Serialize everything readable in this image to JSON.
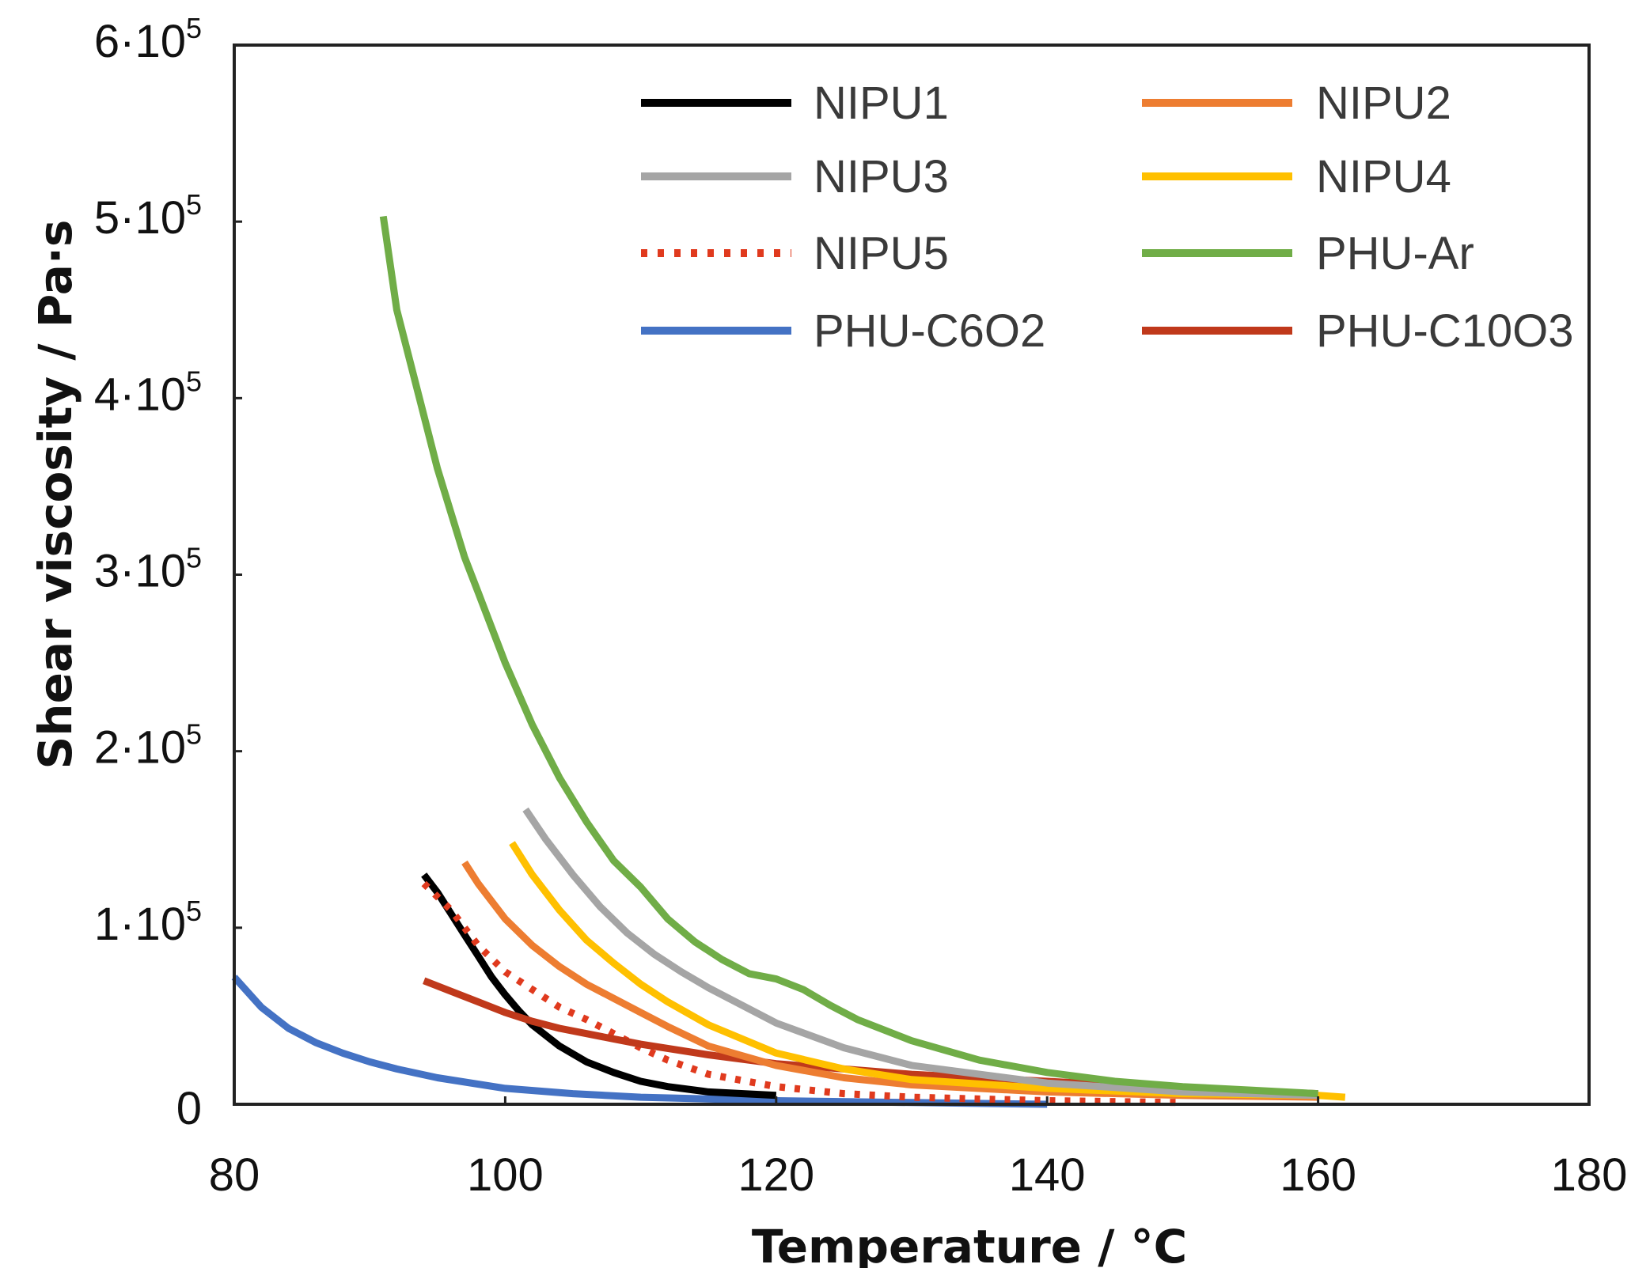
{
  "chart_data": {
    "type": "line",
    "xlabel": "Temperature / °C",
    "ylabel": "Shear viscosity / Pa·s",
    "xlim": [
      80,
      180
    ],
    "ylim": [
      0,
      600000
    ],
    "grid": false,
    "legend_position": "top-right",
    "x_ticks": [
      {
        "value": 80,
        "label": "80"
      },
      {
        "value": 100,
        "label": "100"
      },
      {
        "value": 120,
        "label": "120"
      },
      {
        "value": 140,
        "label": "140"
      },
      {
        "value": 160,
        "label": "160"
      },
      {
        "value": 180,
        "label": "180"
      }
    ],
    "y_ticks": [
      {
        "value": 0,
        "base": "0",
        "exp": ""
      },
      {
        "value": 100000,
        "base": "1·10",
        "exp": "5"
      },
      {
        "value": 200000,
        "base": "2·10",
        "exp": "5"
      },
      {
        "value": 300000,
        "base": "3·10",
        "exp": "5"
      },
      {
        "value": 400000,
        "base": "4·10",
        "exp": "5"
      },
      {
        "value": 500000,
        "base": "5·10",
        "exp": "5"
      },
      {
        "value": 600000,
        "base": "6·10",
        "exp": "5"
      }
    ],
    "series": [
      {
        "name": "PHU-C6O2",
        "color": "#4472C4",
        "style": "solid",
        "x": [
          80,
          82,
          84,
          86,
          88,
          90,
          92,
          95,
          100,
          105,
          110,
          120,
          130,
          140
        ],
        "y": [
          72000,
          55000,
          43000,
          35000,
          29000,
          24000,
          20000,
          15000,
          9000,
          6000,
          4000,
          2000,
          1000,
          0
        ]
      },
      {
        "name": "NIPU1",
        "color": "#000000",
        "style": "solid",
        "x": [
          94,
          95,
          96,
          97,
          98,
          99,
          100,
          101,
          102,
          104,
          106,
          108,
          110,
          112,
          115,
          120
        ],
        "y": [
          130000,
          120000,
          108000,
          96000,
          84000,
          72000,
          62000,
          53000,
          45000,
          33000,
          24000,
          18000,
          13000,
          10000,
          7000,
          5000
        ]
      },
      {
        "name": "NIPU5",
        "color": "#E03A1E",
        "style": "dotted",
        "x": [
          94,
          96,
          98,
          100,
          102,
          104,
          106,
          108,
          110,
          112,
          115,
          120,
          125,
          130,
          140,
          150
        ],
        "y": [
          125000,
          110000,
          90000,
          75000,
          65000,
          55000,
          48000,
          40000,
          32000,
          25000,
          17000,
          10000,
          6000,
          4000,
          2000,
          1000
        ]
      },
      {
        "name": "PHU-C10O3",
        "color": "#C0391B",
        "style": "solid",
        "x": [
          94,
          96,
          98,
          100,
          102,
          104,
          106,
          108,
          110,
          115,
          120,
          125,
          130,
          140,
          150,
          160
        ],
        "y": [
          70000,
          64000,
          58000,
          52000,
          47000,
          43000,
          40000,
          37000,
          34000,
          28000,
          23000,
          20000,
          17000,
          13000,
          9000,
          6000
        ]
      },
      {
        "name": "NIPU2",
        "color": "#ED7D31",
        "style": "solid",
        "x": [
          97,
          98,
          100,
          102,
          104,
          106,
          108,
          110,
          112,
          115,
          120,
          125,
          130,
          140,
          150,
          160
        ],
        "y": [
          137000,
          125000,
          105000,
          90000,
          78000,
          68000,
          60000,
          52000,
          44000,
          33000,
          22000,
          15000,
          11000,
          7000,
          5000,
          4000
        ]
      },
      {
        "name": "NIPU4",
        "color": "#FFC000",
        "style": "solid",
        "x": [
          100.5,
          102,
          104,
          106,
          108,
          110,
          112,
          115,
          120,
          125,
          130,
          140,
          150,
          160,
          162
        ],
        "y": [
          148000,
          130000,
          110000,
          93000,
          80000,
          68000,
          58000,
          45000,
          29000,
          20000,
          14000,
          9000,
          6000,
          5000,
          4000
        ]
      },
      {
        "name": "NIPU3",
        "color": "#A5A5A5",
        "style": "solid",
        "x": [
          101.5,
          103,
          105,
          107,
          109,
          111,
          113,
          115,
          120,
          125,
          130,
          140,
          150,
          160
        ],
        "y": [
          167000,
          150000,
          130000,
          112000,
          97000,
          85000,
          75000,
          66000,
          46000,
          32000,
          22000,
          12000,
          7000,
          5000
        ]
      },
      {
        "name": "PHU-Ar",
        "color": "#70AD47",
        "style": "solid",
        "x": [
          91,
          92,
          93,
          94,
          95,
          96,
          97,
          98,
          100,
          102,
          104,
          106,
          108,
          110,
          112,
          114,
          116,
          118,
          120,
          122,
          124,
          126,
          128,
          130,
          135,
          140,
          145,
          150,
          155,
          160
        ],
        "y": [
          503000,
          450000,
          420000,
          390000,
          360000,
          335000,
          310000,
          290000,
          250000,
          215000,
          185000,
          160000,
          138000,
          123000,
          105000,
          92000,
          82000,
          74000,
          71000,
          65000,
          56000,
          48000,
          42000,
          36000,
          25000,
          18000,
          13000,
          10000,
          8000,
          6000
        ]
      }
    ],
    "legend": {
      "columns": [
        [
          "NIPU1",
          "NIPU3",
          "NIPU5",
          "PHU-C6O2"
        ],
        [
          "NIPU2",
          "NIPU4",
          "PHU-Ar",
          "PHU-C10O3"
        ]
      ]
    }
  }
}
